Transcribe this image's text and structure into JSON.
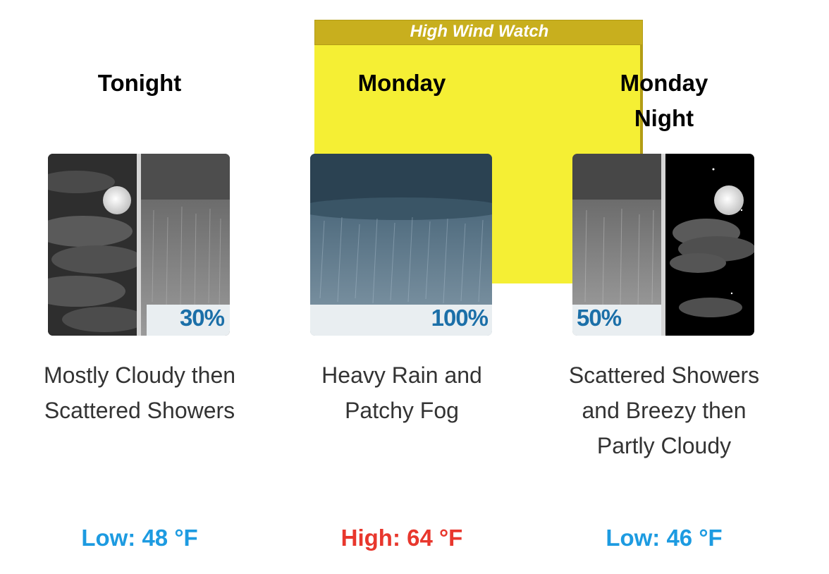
{
  "hazard": {
    "label": "High Wind Watch"
  },
  "forecast": [
    {
      "period": "Tonight",
      "pop": "30%",
      "description": "Mostly Cloudy then Scattered Showers",
      "temperature": "Low: 48 °F",
      "temp_type": "low",
      "icon": "night-cloudy-then-showers-icon"
    },
    {
      "period": "Monday",
      "pop": "100%",
      "description": "Heavy Rain and Patchy Fog",
      "temperature": "High: 64 °F",
      "temp_type": "high",
      "icon": "heavy-rain-icon"
    },
    {
      "period": "Monday Night",
      "pop": "50%",
      "description": "Scattered Showers and Breezy then Partly Cloudy",
      "temperature": "Low: 46 °F",
      "temp_type": "low",
      "icon": "showers-then-night-partly-cloudy-icon"
    }
  ],
  "colors": {
    "hazard_fill": "#f5ef34",
    "hazard_band": "#c8af1e",
    "low_temp": "#1d9be1",
    "high_temp": "#e8372d",
    "pop_text": "#1b6fa8"
  }
}
